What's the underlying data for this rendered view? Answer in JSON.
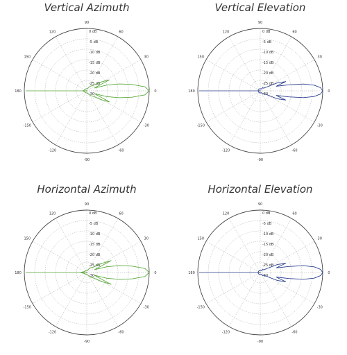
{
  "chart_data": [
    {
      "type": "polar",
      "title": "Vertical Azimuth",
      "color": "#5aa83a",
      "angle_labels": [
        "0",
        "30",
        "60",
        "90",
        "120",
        "150",
        "180",
        "-150",
        "-120",
        "-90",
        "-60",
        "-30"
      ],
      "radial_labels": [
        "0 dB",
        "-5 dB",
        "-10 dB",
        "-15 dB",
        "-20 dB",
        "-25 dB",
        "-30"
      ],
      "rlim_db": [
        -30,
        0
      ],
      "grid": true,
      "series": [
        {
          "angles_deg": [
            0,
            4,
            8,
            12,
            16,
            20,
            26,
            32,
            40,
            50,
            60,
            75,
            90,
            110,
            130,
            150,
            180,
            -150,
            -130,
            -110,
            -90,
            -75,
            -60,
            -50,
            -40,
            -32,
            -26,
            -20,
            -16,
            -12,
            -8,
            -4
          ],
          "gain_db": [
            0,
            -2,
            -8,
            -14,
            -20,
            -26,
            -18,
            -22,
            -26,
            -27,
            -28,
            -29,
            -29,
            -29,
            -29,
            -29,
            -28,
            -29,
            -29,
            -29,
            -29,
            -29,
            -28,
            -27,
            -26,
            -22,
            -18,
            -26,
            -20,
            -14,
            -8,
            -2
          ]
        }
      ]
    },
    {
      "type": "polar",
      "title": "Vertical Elevation",
      "color": "#2b3f8f",
      "angle_labels": [
        "0",
        "30",
        "60",
        "90",
        "120",
        "150",
        "180",
        "-150",
        "-120",
        "-90",
        "-60",
        "-30"
      ],
      "radial_labels": [
        "0 dB",
        "-5 dB",
        "-10 dB",
        "-15 dB",
        "-20 dB",
        "-25 dB",
        "-30"
      ],
      "rlim_db": [
        -30,
        0
      ],
      "grid": true,
      "series": [
        {
          "angles_deg": [
            0,
            3,
            6,
            9,
            12,
            16,
            20,
            25,
            30,
            40,
            50,
            60,
            75,
            90,
            110,
            130,
            150,
            180,
            -150,
            -130,
            -110,
            -90,
            -75,
            -60,
            -50,
            -40,
            -30,
            -25,
            -20,
            -16,
            -12,
            -9,
            -6,
            -3
          ],
          "gain_db": [
            0,
            -1,
            -4,
            -9,
            -16,
            -22,
            -17,
            -21,
            -26,
            -28,
            -28,
            -29,
            -29,
            -29,
            -29,
            -29,
            -29,
            -29,
            -29,
            -29,
            -29,
            -29,
            -29,
            -29,
            -28,
            -28,
            -26,
            -21,
            -17,
            -22,
            -16,
            -9,
            -4,
            -1
          ]
        }
      ]
    },
    {
      "type": "polar",
      "title": "Horizontal Azimuth",
      "color": "#5aa83a",
      "angle_labels": [
        "0",
        "30",
        "60",
        "90",
        "120",
        "150",
        "180",
        "-150",
        "-120",
        "-90",
        "-60",
        "-30"
      ],
      "radial_labels": [
        "0 dB",
        "-5 dB",
        "-10 dB",
        "-15 dB",
        "-20 dB",
        "-25 dB",
        "-30"
      ],
      "rlim_db": [
        -30,
        0
      ],
      "grid": true,
      "series": [
        {
          "angles_deg": [
            0,
            4,
            8,
            12,
            16,
            20,
            26,
            32,
            40,
            50,
            60,
            75,
            90,
            110,
            130,
            150,
            180,
            -150,
            -130,
            -110,
            -90,
            -75,
            -60,
            -50,
            -40,
            -32,
            -26,
            -20,
            -16,
            -12,
            -8,
            -4
          ],
          "gain_db": [
            0,
            -2,
            -8,
            -14,
            -20,
            -26,
            -17,
            -22,
            -26,
            -27,
            -28,
            -29,
            -29,
            -29,
            -29,
            -29,
            -27,
            -29,
            -29,
            -29,
            -29,
            -29,
            -28,
            -27,
            -26,
            -22,
            -17,
            -26,
            -20,
            -14,
            -8,
            -2
          ]
        }
      ]
    },
    {
      "type": "polar",
      "title": "Horizontal Elevation",
      "color": "#2b3f8f",
      "angle_labels": [
        "0",
        "30",
        "60",
        "90",
        "120",
        "150",
        "180",
        "-150",
        "-120",
        "-90",
        "-60",
        "-30"
      ],
      "radial_labels": [
        "0 dB",
        "-5 dB",
        "-10 dB",
        "-15 dB",
        "-20 dB",
        "-25 dB",
        "-30"
      ],
      "rlim_db": [
        -30,
        0
      ],
      "grid": true,
      "series": [
        {
          "angles_deg": [
            0,
            3,
            6,
            9,
            12,
            16,
            20,
            25,
            30,
            40,
            50,
            60,
            75,
            90,
            110,
            130,
            150,
            180,
            -150,
            -130,
            -110,
            -90,
            -75,
            -60,
            -50,
            -40,
            -30,
            -25,
            -20,
            -16,
            -12,
            -9,
            -6,
            -3
          ],
          "gain_db": [
            0,
            -1,
            -4,
            -9,
            -16,
            -22,
            -17,
            -21,
            -26,
            -28,
            -28,
            -29,
            -29,
            -29,
            -29,
            -29,
            -29,
            -29,
            -29,
            -29,
            -29,
            -29,
            -29,
            -29,
            -28,
            -28,
            -26,
            -21,
            -17,
            -22,
            -16,
            -9,
            -4,
            -1
          ]
        }
      ]
    }
  ]
}
